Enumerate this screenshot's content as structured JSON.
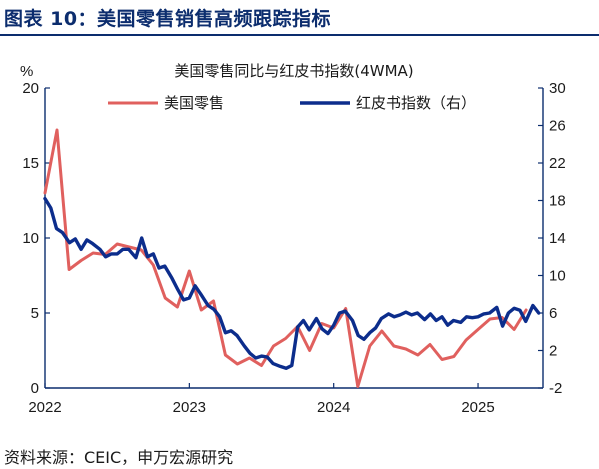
{
  "header": {
    "figure_title": "图表 10：美国零售销售高频跟踪指标"
  },
  "footer": {
    "source": "资料来源：CEIC，申万宏源研究"
  },
  "colors": {
    "retail_line": "#e0605e",
    "redbook_line": "#0c2d8c",
    "axis": "#0c2d6e",
    "title_rule": "#0c2d6e"
  },
  "chart_data": {
    "type": "line",
    "title": "美国零售同比与红皮书指数(4WMA)",
    "y_unit_label": "%",
    "grid": false,
    "legend_position": "top",
    "x_axis": {
      "range": [
        2022.0,
        2025.45
      ],
      "tick_values": [
        2022,
        2023,
        2024,
        2025
      ],
      "tick_labels": [
        "2022",
        "2023",
        "2024",
        "2025"
      ]
    },
    "y_left": {
      "range": [
        0,
        20
      ],
      "tick_values": [
        0,
        5,
        10,
        15,
        20
      ],
      "tick_labels": [
        "0",
        "5",
        "10",
        "15",
        "20"
      ]
    },
    "y_right": {
      "range": [
        -2,
        30
      ],
      "tick_values": [
        -2,
        2,
        6,
        10,
        14,
        18,
        22,
        26,
        30
      ],
      "tick_labels": [
        "-2",
        "2",
        "6",
        "10",
        "14",
        "18",
        "22",
        "26",
        "30"
      ]
    },
    "series": [
      {
        "name": "美国零售",
        "axis": "left",
        "color": "#e0605e",
        "x": [
          2022.0,
          2022.083,
          2022.167,
          2022.25,
          2022.333,
          2022.417,
          2022.5,
          2022.583,
          2022.667,
          2022.75,
          2022.833,
          2022.917,
          2023.0,
          2023.083,
          2023.167,
          2023.25,
          2023.333,
          2023.417,
          2023.5,
          2023.583,
          2023.667,
          2023.75,
          2023.833,
          2023.917,
          2024.0,
          2024.083,
          2024.167,
          2024.25,
          2024.333,
          2024.417,
          2024.5,
          2024.583,
          2024.667,
          2024.75,
          2024.833,
          2024.917,
          2025.0,
          2025.083,
          2025.167,
          2025.25,
          2025.333
        ],
        "y": [
          13.0,
          17.2,
          7.9,
          8.5,
          9.0,
          8.9,
          9.6,
          9.4,
          9.2,
          8.2,
          6.0,
          5.4,
          7.8,
          5.2,
          5.8,
          2.2,
          1.6,
          2.0,
          1.5,
          2.8,
          3.3,
          4.1,
          2.5,
          4.3,
          4.0,
          5.3,
          0.1,
          2.8,
          3.8,
          2.8,
          2.6,
          2.2,
          2.9,
          1.9,
          2.1,
          3.2,
          3.9,
          4.6,
          4.7,
          3.9,
          5.2
        ]
      },
      {
        "name": "红皮书指数（右）",
        "axis": "right",
        "color": "#0c2d8c",
        "x": [
          2022.0,
          2022.04,
          2022.08,
          2022.12,
          2022.17,
          2022.21,
          2022.25,
          2022.29,
          2022.33,
          2022.38,
          2022.42,
          2022.46,
          2022.5,
          2022.54,
          2022.58,
          2022.63,
          2022.67,
          2022.71,
          2022.75,
          2022.79,
          2022.83,
          2022.88,
          2022.92,
          2022.96,
          2023.0,
          2023.04,
          2023.08,
          2023.13,
          2023.17,
          2023.21,
          2023.25,
          2023.29,
          2023.33,
          2023.38,
          2023.42,
          2023.46,
          2023.5,
          2023.54,
          2023.58,
          2023.63,
          2023.67,
          2023.71,
          2023.75,
          2023.79,
          2023.83,
          2023.88,
          2023.92,
          2023.96,
          2024.0,
          2024.04,
          2024.08,
          2024.13,
          2024.17,
          2024.21,
          2024.25,
          2024.29,
          2024.33,
          2024.38,
          2024.42,
          2024.46,
          2024.5,
          2024.54,
          2024.58,
          2024.63,
          2024.67,
          2024.71,
          2024.75,
          2024.79,
          2024.83,
          2024.88,
          2024.92,
          2024.96,
          2025.0,
          2025.04,
          2025.08,
          2025.13,
          2025.17,
          2025.21,
          2025.25,
          2025.29,
          2025.33,
          2025.38,
          2025.42
        ],
        "y": [
          18.2,
          17.2,
          15.0,
          14.6,
          13.5,
          13.9,
          12.8,
          13.8,
          13.4,
          12.8,
          12.0,
          12.3,
          12.3,
          12.8,
          12.8,
          11.9,
          14.0,
          12.0,
          12.3,
          10.8,
          11.0,
          9.7,
          8.5,
          7.4,
          7.6,
          8.9,
          8.0,
          6.8,
          6.4,
          5.6,
          3.9,
          4.1,
          3.6,
          2.5,
          1.7,
          1.2,
          1.4,
          1.3,
          0.6,
          0.3,
          0.1,
          0.4,
          4.5,
          5.2,
          4.2,
          5.4,
          4.3,
          3.8,
          4.7,
          6.0,
          6.2,
          5.2,
          3.6,
          3.2,
          3.9,
          4.4,
          5.4,
          5.9,
          5.6,
          5.8,
          6.1,
          5.8,
          6.0,
          5.3,
          5.9,
          5.2,
          5.6,
          4.7,
          5.2,
          5.0,
          5.6,
          5.5,
          5.6,
          5.9,
          6.0,
          6.6,
          4.6,
          6.0,
          6.5,
          6.3,
          5.1,
          6.8,
          6.0
        ]
      }
    ]
  }
}
